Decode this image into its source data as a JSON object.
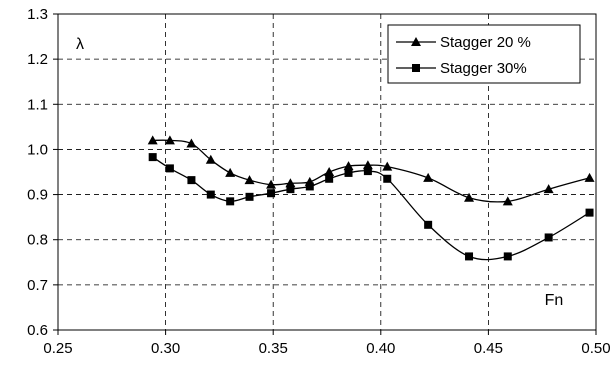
{
  "chart_data": {
    "type": "line",
    "title": "",
    "xlabel": "Fn",
    "ylabel": "λ",
    "xlim": [
      0.25,
      0.5
    ],
    "ylim": [
      0.6,
      1.3
    ],
    "xticks": [
      "0.25",
      "0.30",
      "0.35",
      "0.40",
      "0.45",
      "0.50"
    ],
    "yticks": [
      "0.6",
      "0.7",
      "0.8",
      "0.9",
      "1.0",
      "1.1",
      "1.2",
      "1.3"
    ],
    "grid": true,
    "legend_position": "top-right",
    "series": [
      {
        "name": "Stagger 20 %",
        "marker": "triangle",
        "color": "#000000",
        "x": [
          0.294,
          0.302,
          0.312,
          0.321,
          0.33,
          0.339,
          0.349,
          0.358,
          0.367,
          0.376,
          0.385,
          0.394,
          0.403,
          0.422,
          0.441,
          0.459,
          0.478,
          0.497
        ],
        "y": [
          1.02,
          1.02,
          1.013,
          0.977,
          0.948,
          0.932,
          0.922,
          0.925,
          0.928,
          0.95,
          0.963,
          0.965,
          0.962,
          0.937,
          0.893,
          0.885,
          0.912,
          0.937
        ]
      },
      {
        "name": "Stagger 30%",
        "marker": "square",
        "color": "#000000",
        "x": [
          0.294,
          0.302,
          0.312,
          0.321,
          0.33,
          0.339,
          0.349,
          0.358,
          0.367,
          0.376,
          0.385,
          0.394,
          0.403,
          0.422,
          0.441,
          0.459,
          0.478,
          0.497
        ],
        "y": [
          0.983,
          0.958,
          0.932,
          0.9,
          0.885,
          0.895,
          0.903,
          0.912,
          0.918,
          0.935,
          0.948,
          0.952,
          0.935,
          0.833,
          0.763,
          0.763,
          0.805,
          0.86
        ]
      }
    ]
  }
}
